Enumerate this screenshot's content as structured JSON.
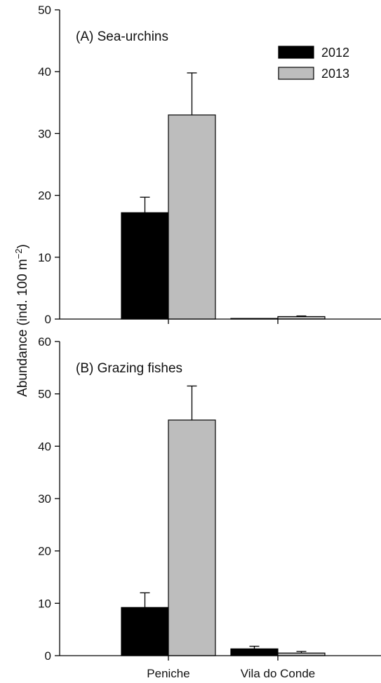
{
  "chart_data": {
    "type": "bar",
    "ylabel": "Abundance (ind. 100 m",
    "ylabel_sup": "−2",
    "ylabel_end": ")",
    "categories": [
      "Peniche",
      "Vila do Conde"
    ],
    "legend": {
      "placement": "top-right",
      "entries": [
        {
          "label": "2012",
          "color": "#000000"
        },
        {
          "label": "2013",
          "color": "#bdbdbd"
        }
      ]
    },
    "panels": [
      {
        "title": "(A) Sea-urchins",
        "ylim": [
          0,
          50
        ],
        "yticks": [
          0,
          10,
          20,
          30,
          40,
          50
        ],
        "series": [
          {
            "name": "2012",
            "color": "#000000",
            "values": [
              17.2,
              0.1
            ],
            "errors": [
              2.5,
              0
            ]
          },
          {
            "name": "2013",
            "color": "#bdbdbd",
            "values": [
              33.0,
              0.4
            ],
            "errors": [
              6.8,
              0.1
            ]
          }
        ]
      },
      {
        "title": "(B) Grazing fishes",
        "ylim": [
          0,
          60
        ],
        "yticks": [
          0,
          10,
          20,
          30,
          40,
          50,
          60
        ],
        "series": [
          {
            "name": "2012",
            "color": "#000000",
            "values": [
              9.2,
              1.3
            ],
            "errors": [
              2.8,
              0.5
            ]
          },
          {
            "name": "2013",
            "color": "#bdbdbd",
            "values": [
              45.0,
              0.5
            ],
            "errors": [
              6.5,
              0.3
            ]
          }
        ]
      }
    ]
  }
}
